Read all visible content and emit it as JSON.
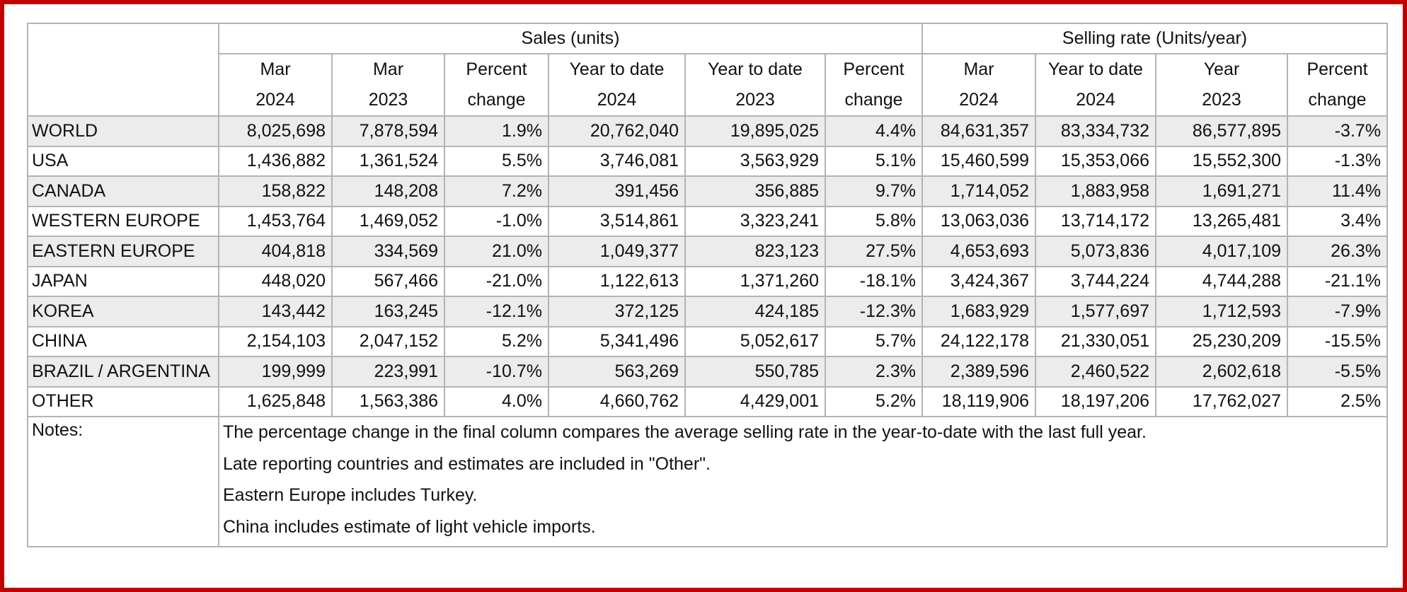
{
  "table": {
    "group_headers": {
      "sales": "Sales (units)",
      "selling_rate": "Selling rate (Units/year)"
    },
    "columns": [
      {
        "line1": "Mar",
        "line2": "2024"
      },
      {
        "line1": "Mar",
        "line2": "2023"
      },
      {
        "line1": "Percent",
        "line2": "change"
      },
      {
        "line1": "Year to date",
        "line2": "2024"
      },
      {
        "line1": "Year to date",
        "line2": "2023"
      },
      {
        "line1": "Percent",
        "line2": "change"
      },
      {
        "line1": "Mar",
        "line2": "2024"
      },
      {
        "line1": "Year to date",
        "line2": "2024"
      },
      {
        "line1": "Year",
        "line2": "2023"
      },
      {
        "line1": "Percent",
        "line2": "change"
      }
    ],
    "rows": [
      {
        "region": "WORLD",
        "values": [
          "8,025,698",
          "7,878,594",
          "1.9%",
          "20,762,040",
          "19,895,025",
          "4.4%",
          "84,631,357",
          "83,334,732",
          "86,577,895",
          "-3.7%"
        ]
      },
      {
        "region": "USA",
        "values": [
          "1,436,882",
          "1,361,524",
          "5.5%",
          "3,746,081",
          "3,563,929",
          "5.1%",
          "15,460,599",
          "15,353,066",
          "15,552,300",
          "-1.3%"
        ]
      },
      {
        "region": "CANADA",
        "values": [
          "158,822",
          "148,208",
          "7.2%",
          "391,456",
          "356,885",
          "9.7%",
          "1,714,052",
          "1,883,958",
          "1,691,271",
          "11.4%"
        ]
      },
      {
        "region": "WESTERN EUROPE",
        "values": [
          "1,453,764",
          "1,469,052",
          "-1.0%",
          "3,514,861",
          "3,323,241",
          "5.8%",
          "13,063,036",
          "13,714,172",
          "13,265,481",
          "3.4%"
        ]
      },
      {
        "region": "EASTERN EUROPE",
        "values": [
          "404,818",
          "334,569",
          "21.0%",
          "1,049,377",
          "823,123",
          "27.5%",
          "4,653,693",
          "5,073,836",
          "4,017,109",
          "26.3%"
        ]
      },
      {
        "region": "JAPAN",
        "values": [
          "448,020",
          "567,466",
          "-21.0%",
          "1,122,613",
          "1,371,260",
          "-18.1%",
          "3,424,367",
          "3,744,224",
          "4,744,288",
          "-21.1%"
        ]
      },
      {
        "region": "KOREA",
        "values": [
          "143,442",
          "163,245",
          "-12.1%",
          "372,125",
          "424,185",
          "-12.3%",
          "1,683,929",
          "1,577,697",
          "1,712,593",
          "-7.9%"
        ]
      },
      {
        "region": "CHINA",
        "values": [
          "2,154,103",
          "2,047,152",
          "5.2%",
          "5,341,496",
          "5,052,617",
          "5.7%",
          "24,122,178",
          "21,330,051",
          "25,230,209",
          "-15.5%"
        ]
      },
      {
        "region": "BRAZIL / ARGENTINA",
        "values": [
          "199,999",
          "223,991",
          "-10.7%",
          "563,269",
          "550,785",
          "2.3%",
          "2,389,596",
          "2,460,522",
          "2,602,618",
          "-5.5%"
        ]
      },
      {
        "region": "OTHER",
        "values": [
          "1,625,848",
          "1,563,386",
          "4.0%",
          "4,660,762",
          "4,429,001",
          "5.2%",
          "18,119,906",
          "18,197,206",
          "17,762,027",
          "2.5%"
        ]
      }
    ],
    "notes_label": "Notes:",
    "notes": [
      "The percentage change in the final column compares the average selling rate in the year-to-date with the last full year.",
      "Late reporting countries and estimates are included in \"Other\".",
      "Eastern Europe includes Turkey.",
      "China includes estimate of light vehicle imports."
    ]
  },
  "colors": {
    "frame": "#c00000",
    "grid": "#b4b4b4",
    "shaded_row": "#ececec"
  }
}
